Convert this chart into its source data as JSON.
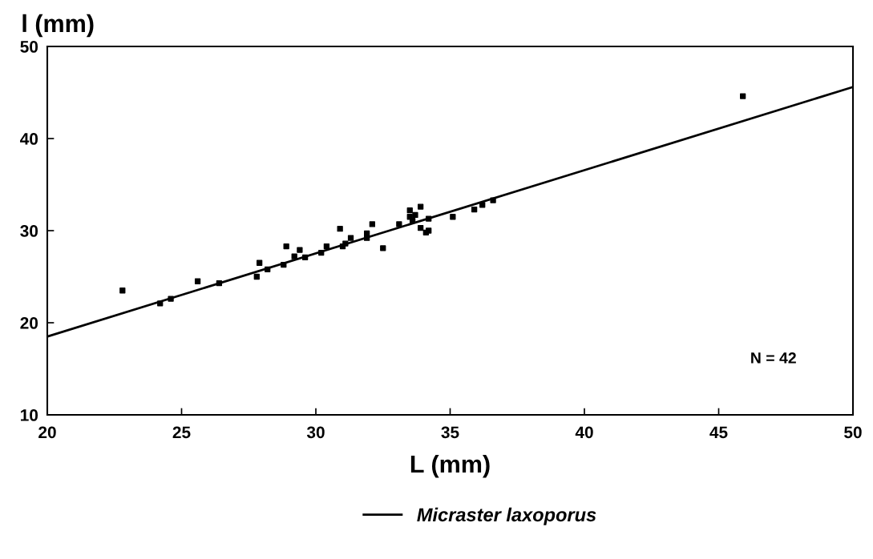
{
  "chart_data": {
    "type": "scatter",
    "xlabel": "L (mm)",
    "ylabel": "l (mm)",
    "xlim": [
      20,
      50
    ],
    "ylim": [
      10,
      50
    ],
    "xticks": [
      20,
      25,
      30,
      35,
      40,
      45,
      50
    ],
    "yticks": [
      10,
      20,
      30,
      40,
      50
    ],
    "grid": false,
    "legend": "bottom",
    "annotations": [
      "N = 42"
    ],
    "series": [
      {
        "color": "#000000",
        "marker": "square",
        "x": [
          22.8,
          24.2,
          24.6,
          25.6,
          26.4,
          27.8,
          27.9,
          28.2,
          28.8,
          28.9,
          29.2,
          29.4,
          29.6,
          30.2,
          30.4,
          30.9,
          31.0,
          31.1,
          31.3,
          31.9,
          31.9,
          32.1,
          32.5,
          33.1,
          33.5,
          33.5,
          33.6,
          33.7,
          33.9,
          33.9,
          34.1,
          34.2,
          34.2,
          35.1,
          35.9,
          36.2,
          36.6,
          45.9
        ],
        "values": [
          23.5,
          22.1,
          22.6,
          24.5,
          24.3,
          25.0,
          26.5,
          25.8,
          26.3,
          28.3,
          27.2,
          27.9,
          27.1,
          27.6,
          28.3,
          30.2,
          28.3,
          28.6,
          29.2,
          29.2,
          29.7,
          30.7,
          28.1,
          30.7,
          32.2,
          31.5,
          31.1,
          31.7,
          32.6,
          30.3,
          29.8,
          30.0,
          31.3,
          31.5,
          32.3,
          32.8,
          33.3,
          44.6
        ]
      },
      {
        "type": "line",
        "name": "Micraster laxoporus",
        "color": "#000000",
        "line_style": "solid",
        "x": [
          20,
          50
        ],
        "values": [
          18.5,
          45.6
        ]
      }
    ]
  }
}
